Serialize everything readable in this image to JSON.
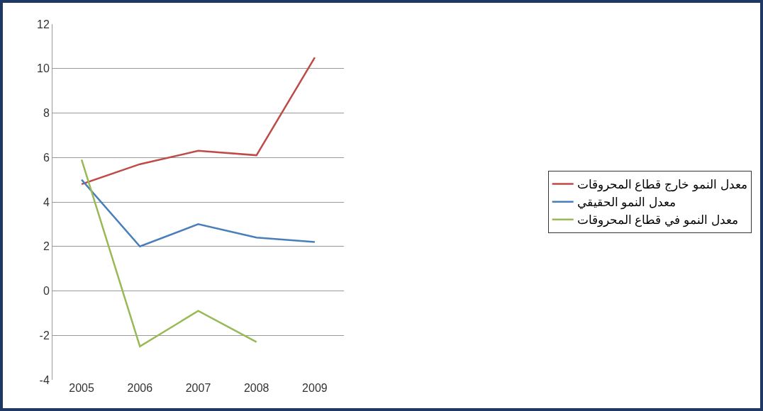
{
  "chart_data": {
    "type": "line",
    "categories": [
      "2005",
      "2006",
      "2007",
      "2008",
      "2009"
    ],
    "series": [
      {
        "name": "معدل النمو خارج قطاع المحروقات",
        "color": "#be4b48",
        "values": [
          4.8,
          5.7,
          6.3,
          6.1,
          10.5
        ]
      },
      {
        "name": "معدل النمو الحقيقي",
        "color": "#4a7ebb",
        "values": [
          5.0,
          2.0,
          3.0,
          2.4,
          2.2
        ]
      },
      {
        "name": "معدل النمو في قطاع المحروقات",
        "color": "#98b954",
        "values": [
          5.9,
          -2.5,
          -0.9,
          -2.3,
          null
        ]
      }
    ],
    "ylim": [
      -4,
      12
    ],
    "yticks": [
      -4,
      -2,
      0,
      2,
      4,
      6,
      8,
      10,
      12
    ],
    "grid": "y",
    "legend": "right",
    "marker": "none",
    "line_style": "solid"
  }
}
